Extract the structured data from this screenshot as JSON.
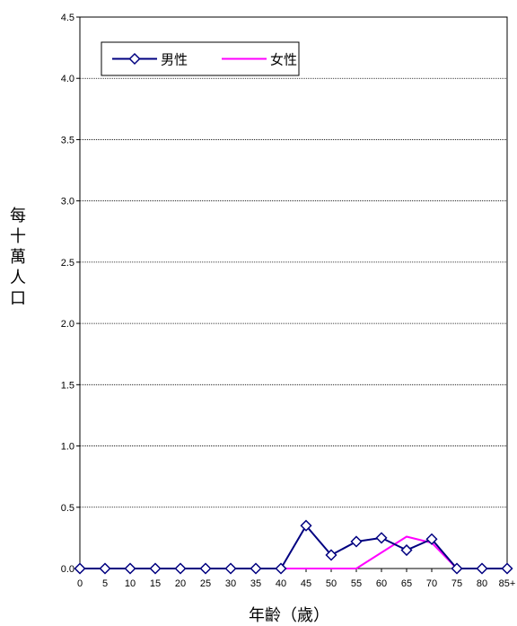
{
  "chart_data": {
    "type": "line",
    "title": "",
    "xlabel": "年齡（歲）",
    "ylabel": "每十萬人口",
    "categories": [
      "0",
      "5",
      "10",
      "15",
      "20",
      "25",
      "30",
      "35",
      "40",
      "45",
      "50",
      "55",
      "60",
      "65",
      "70",
      "75",
      "80",
      "85+"
    ],
    "ylim": [
      0,
      4.5
    ],
    "yticks": [
      "0.0",
      "0.5",
      "1.0",
      "1.5",
      "2.0",
      "2.5",
      "3.0",
      "3.5",
      "4.0",
      "4.5"
    ],
    "grid": "horizontal-dotted",
    "legend_position": "top-left",
    "series": [
      {
        "name": "男性",
        "color": "#000080",
        "marker": "diamond",
        "values": [
          0,
          0,
          0,
          0,
          0,
          0,
          0,
          0,
          0,
          0.35,
          0.11,
          0.22,
          0.25,
          0.15,
          0.24,
          0,
          0,
          0
        ]
      },
      {
        "name": "女性",
        "color": "#ff00ff",
        "marker": "none",
        "values": [
          0,
          0,
          0,
          0,
          0,
          0,
          0,
          0,
          0,
          0,
          0,
          0,
          0.13,
          0.26,
          0.21,
          0,
          0,
          0
        ]
      }
    ]
  }
}
